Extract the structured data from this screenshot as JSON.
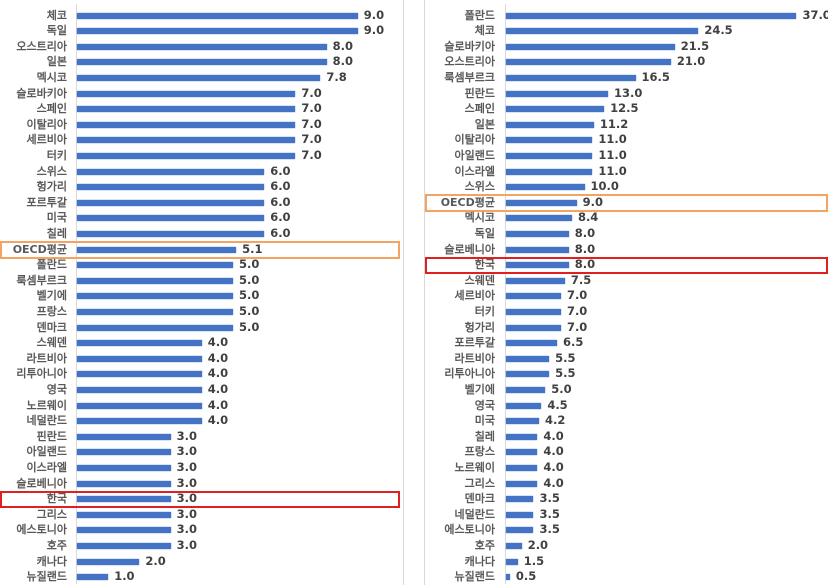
{
  "chart_data": [
    {
      "type": "bar",
      "orientation": "horizontal",
      "title": "",
      "xlabel": "",
      "ylabel": "",
      "xlim": [
        0,
        9.5
      ],
      "grid": false,
      "highlight": {
        "OECD평균": "#f4a460",
        "한국": "#e02020"
      },
      "bar_color": "#4472c4",
      "categories": [
        "체코",
        "독일",
        "오스트리아",
        "일본",
        "멕시코",
        "슬로바키아",
        "스페인",
        "이탈리아",
        "세르비아",
        "터키",
        "스위스",
        "헝가리",
        "포르투갈",
        "미국",
        "칠레",
        "OECD평균",
        "폴란드",
        "룩셈부르크",
        "벨기에",
        "프랑스",
        "덴마크",
        "스웨덴",
        "라트비아",
        "리투아니아",
        "영국",
        "노르웨이",
        "네덜란드",
        "핀란드",
        "아일랜드",
        "이스라엘",
        "슬로베니아",
        "한국",
        "그리스",
        "에스토니아",
        "호주",
        "캐나다",
        "뉴질랜드"
      ],
      "values": [
        9.0,
        9.0,
        8.0,
        8.0,
        7.8,
        7.0,
        7.0,
        7.0,
        7.0,
        7.0,
        6.0,
        6.0,
        6.0,
        6.0,
        6.0,
        5.1,
        5.0,
        5.0,
        5.0,
        5.0,
        5.0,
        4.0,
        4.0,
        4.0,
        4.0,
        4.0,
        4.0,
        3.0,
        3.0,
        3.0,
        3.0,
        3.0,
        3.0,
        3.0,
        3.0,
        2.0,
        1.0
      ],
      "labels": [
        "9.0",
        "9.0",
        "8.0",
        "8.0",
        "7.8",
        "7.0",
        "7.0",
        "7.0",
        "7.0",
        "7.0",
        "6.0",
        "6.0",
        "6.0",
        "6.0",
        "6.0",
        "5.1",
        "5.0",
        "5.0",
        "5.0",
        "5.0",
        "5.0",
        "4.0",
        "4.0",
        "4.0",
        "4.0",
        "4.0",
        "4.0",
        "3.0",
        "3.0",
        "3.0",
        "3.0",
        "3.0",
        "3.0",
        "3.0",
        "3.0",
        "2.0",
        "1.0"
      ]
    },
    {
      "type": "bar",
      "orientation": "horizontal",
      "title": "",
      "xlabel": "",
      "ylabel": "",
      "xlim": [
        0,
        38
      ],
      "grid": false,
      "highlight": {
        "OECD평균": "#f4a460",
        "한국": "#e02020"
      },
      "bar_color": "#4472c4",
      "categories": [
        "폴란드",
        "체코",
        "슬로바키아",
        "오스트리아",
        "룩셈부르크",
        "핀란드",
        "스페인",
        "일본",
        "이탈리아",
        "아일랜드",
        "이스라엘",
        "스위스",
        "OECD평균",
        "멕시코",
        "독일",
        "슬로베니아",
        "한국",
        "스웨덴",
        "세르비아",
        "터키",
        "헝가리",
        "포르투갈",
        "라트비아",
        "리투아니아",
        "벨기에",
        "영국",
        "미국",
        "칠레",
        "프랑스",
        "노르웨이",
        "그리스",
        "덴마크",
        "네덜란드",
        "에스토니아",
        "호주",
        "캐나다",
        "뉴질랜드"
      ],
      "values": [
        37.0,
        24.5,
        21.5,
        21.0,
        16.5,
        13.0,
        12.5,
        11.2,
        11.0,
        11.0,
        11.0,
        10.0,
        9.0,
        8.4,
        8.0,
        8.0,
        8.0,
        7.5,
        7.0,
        7.0,
        7.0,
        6.5,
        5.5,
        5.5,
        5.0,
        4.5,
        4.2,
        4.0,
        4.0,
        4.0,
        4.0,
        3.5,
        3.5,
        3.5,
        2.0,
        1.5,
        0.5
      ],
      "labels": [
        "37.0",
        "24.5",
        "21.5",
        "21.0",
        "16.5",
        "13.0",
        "12.5",
        "11.2",
        "11.0",
        "11.0",
        "11.0",
        "10.0",
        "9.0",
        "8.4",
        "8.0",
        "8.0",
        "8.0",
        "7.5",
        "7.0",
        "7.0",
        "7.0",
        "6.5",
        "5.5",
        "5.5",
        "5.0",
        "4.5",
        "4.2",
        "4.0",
        "4.0",
        "4.0",
        "4.0",
        "3.5",
        "3.5",
        "3.5",
        "2.0",
        "1.5",
        "0.5"
      ]
    }
  ]
}
